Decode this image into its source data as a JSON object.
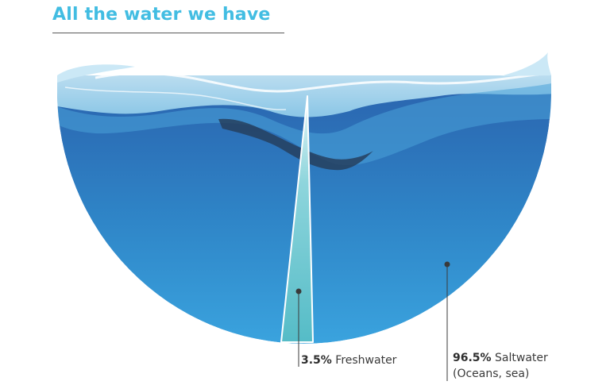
{
  "title": "All the water we have",
  "chart_data": {
    "type": "pie",
    "title": "All the water we have",
    "slices": [
      {
        "label": "Freshwater",
        "value": 3.5,
        "percent_text": "3.5%",
        "color": "#5fc2cc"
      },
      {
        "label": "Saltwater",
        "value": 96.5,
        "percent_text": "96.5%",
        "sublabel": "(Oceans, sea)",
        "color": "#2f86c8"
      }
    ]
  },
  "colors": {
    "title": "#42bde2",
    "ocean_deep": "#2a6db5",
    "ocean_light": "#3aa1dc",
    "wave_light": "#c7e6f5",
    "wave_dark": "#2b4f73"
  }
}
